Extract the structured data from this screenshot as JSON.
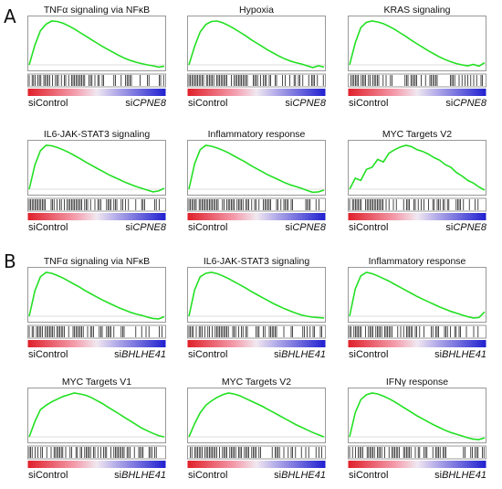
{
  "figure": {
    "sections": [
      {
        "label": "A",
        "panels": [
          {
            "title": "TNFα signaling via NFκB",
            "left_label": "siControl",
            "right_prefix": "si",
            "right_gene": "CPNE8",
            "curve": [
              0,
              0.45,
              0.78,
              0.93,
              1.0,
              0.99,
              0.95,
              0.89,
              0.82,
              0.74,
              0.66,
              0.58,
              0.5,
              0.42,
              0.35,
              0.28,
              0.21,
              0.15,
              0.1,
              0.06,
              0.03,
              0.0,
              -0.02,
              -0.05,
              -0.03
            ]
          },
          {
            "title": "Hypoxia",
            "left_label": "siControl",
            "right_prefix": "si",
            "right_gene": "CPNE8",
            "curve": [
              0,
              0.42,
              0.75,
              0.92,
              0.99,
              1.0,
              0.96,
              0.9,
              0.83,
              0.75,
              0.67,
              0.58,
              0.5,
              0.42,
              0.34,
              0.27,
              0.2,
              0.14,
              0.09,
              0.05,
              0.02,
              -0.02,
              -0.06,
              -0.02,
              -0.05
            ]
          },
          {
            "title": "KRAS signaling",
            "left_label": "siControl",
            "right_prefix": "si",
            "right_gene": "CPNE8",
            "curve": [
              0,
              0.5,
              0.85,
              0.97,
              1.0,
              0.98,
              0.94,
              0.88,
              0.81,
              0.73,
              0.65,
              0.56,
              0.48,
              0.4,
              0.32,
              0.25,
              0.18,
              0.12,
              0.07,
              0.03,
              0.0,
              -0.02,
              0.01,
              -0.03,
              0.05
            ]
          },
          {
            "title": "IL6-JAK-STAT3 signaling",
            "left_label": "siControl",
            "right_prefix": "si",
            "right_gene": "CPNE8",
            "curve": [
              0,
              0.55,
              0.88,
              1.0,
              0.99,
              0.95,
              0.9,
              0.84,
              0.77,
              0.7,
              0.62,
              0.55,
              0.48,
              0.41,
              0.34,
              0.28,
              0.22,
              0.16,
              0.11,
              0.06,
              0.02,
              -0.02,
              -0.06,
              -0.04,
              0.02
            ]
          },
          {
            "title": "Inflammatory response",
            "left_label": "siControl",
            "right_prefix": "si",
            "right_gene": "CPNE8",
            "curve": [
              0,
              0.58,
              0.9,
              1.0,
              0.98,
              0.94,
              0.89,
              0.83,
              0.76,
              0.69,
              0.62,
              0.54,
              0.47,
              0.4,
              0.33,
              0.27,
              0.21,
              0.15,
              0.1,
              0.06,
              0.02,
              -0.03,
              -0.07,
              -0.06,
              -0.02
            ]
          },
          {
            "title": "MYC Targets V2",
            "left_label": "siControl",
            "right_prefix": "si",
            "right_gene": "CPNE8",
            "curve": [
              0,
              0.25,
              0.2,
              0.45,
              0.5,
              0.68,
              0.62,
              0.82,
              0.9,
              0.96,
              1.0,
              0.97,
              0.9,
              0.86,
              0.8,
              0.72,
              0.66,
              0.56,
              0.5,
              0.38,
              0.3,
              0.2,
              0.14,
              0.05,
              -0.02
            ]
          }
        ]
      },
      {
        "label": "B",
        "panels": [
          {
            "title": "TNFα signaling via NFκB",
            "left_label": "siControl",
            "right_prefix": "si",
            "right_gene": "BHLHE41",
            "curve": [
              0,
              0.58,
              0.9,
              1.0,
              0.98,
              0.93,
              0.87,
              0.8,
              0.73,
              0.66,
              0.58,
              0.51,
              0.44,
              0.37,
              0.31,
              0.25,
              0.19,
              0.14,
              0.09,
              0.05,
              0.02,
              -0.02,
              -0.05,
              -0.06,
              -0.01
            ]
          },
          {
            "title": "IL6-JAK-STAT3 signaling",
            "left_label": "siControl",
            "right_prefix": "si",
            "right_gene": "BHLHE41",
            "curve": [
              0,
              0.6,
              0.9,
              0.98,
              1.0,
              0.97,
              0.92,
              0.86,
              0.79,
              0.72,
              0.65,
              0.57,
              0.5,
              0.43,
              0.36,
              0.29,
              0.23,
              0.17,
              0.12,
              0.07,
              0.03,
              0.0,
              -0.02,
              -0.03,
              -0.04
            ]
          },
          {
            "title": "Inflammatory response",
            "left_label": "siControl",
            "right_prefix": "si",
            "right_gene": "BHLHE41",
            "curve": [
              0,
              0.62,
              0.92,
              1.0,
              0.97,
              0.92,
              0.86,
              0.8,
              0.73,
              0.66,
              0.59,
              0.52,
              0.45,
              0.39,
              0.33,
              0.27,
              0.21,
              0.16,
              0.11,
              0.07,
              0.03,
              -0.01,
              -0.04,
              -0.03,
              0.1
            ]
          },
          {
            "title": "MYC Targets V1",
            "left_label": "siControl",
            "right_prefix": "si",
            "right_gene": "BHLHE41",
            "curve": [
              0,
              0.35,
              0.62,
              0.72,
              0.8,
              0.86,
              0.92,
              0.96,
              1.0,
              0.98,
              0.95,
              0.9,
              0.83,
              0.76,
              0.68,
              0.6,
              0.52,
              0.44,
              0.36,
              0.28,
              0.2,
              0.14,
              0.08,
              0.03,
              0.0
            ]
          },
          {
            "title": "MYC Targets V2",
            "left_label": "siControl",
            "right_prefix": "si",
            "right_gene": "BHLHE41",
            "curve": [
              0,
              0.3,
              0.55,
              0.72,
              0.82,
              0.9,
              0.96,
              1.0,
              0.98,
              0.94,
              0.88,
              0.82,
              0.76,
              0.7,
              0.63,
              0.56,
              0.49,
              0.42,
              0.35,
              0.28,
              0.22,
              0.16,
              0.1,
              0.05,
              0.0
            ]
          },
          {
            "title": "IFNγ response",
            "left_label": "siControl",
            "right_prefix": "si",
            "right_gene": "BHLHE41",
            "curve": [
              0,
              0.55,
              0.85,
              0.96,
              1.0,
              0.98,
              0.93,
              0.87,
              0.8,
              0.72,
              0.64,
              0.56,
              0.48,
              0.41,
              0.34,
              0.27,
              0.21,
              0.15,
              0.1,
              0.06,
              0.02,
              -0.02,
              -0.05,
              -0.06,
              -0.02
            ]
          }
        ]
      }
    ],
    "colors": {
      "curve": "#22e022",
      "ranked_high": "#e0202a",
      "ranked_low": "#2020d0",
      "hits": "#000000",
      "frame": "#999999"
    }
  }
}
